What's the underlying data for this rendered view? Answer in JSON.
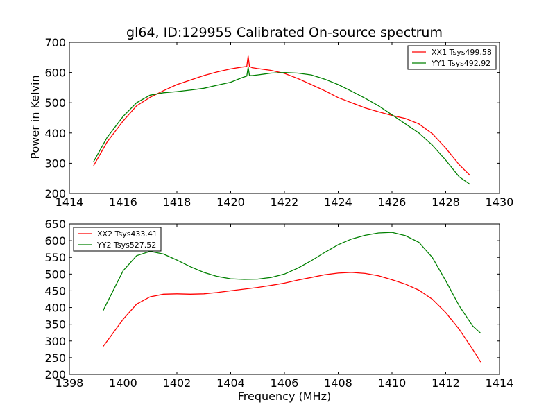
{
  "title": "gl64, ID:129955 Calibrated On-source spectrum",
  "ylabel": "Power in Kelvin",
  "xlabel": "Frequency (MHz)",
  "colors": {
    "red": "#ff0000",
    "green": "#008000"
  },
  "chart_data": [
    {
      "type": "line",
      "title": "gl64, ID:129955 Calibrated On-source spectrum",
      "ylabel": "Power in Kelvin",
      "xlabel": "",
      "xlim": [
        1414,
        1430
      ],
      "ylim": [
        200,
        700
      ],
      "xticks": [
        1414,
        1416,
        1418,
        1420,
        1422,
        1424,
        1426,
        1428,
        1430
      ],
      "yticks": [
        200,
        300,
        400,
        500,
        600,
        700
      ],
      "legend": "top-right",
      "grid": false,
      "series": [
        {
          "name": "XX1 Tsys499.58",
          "color": "#ff0000",
          "x": [
            1414.9,
            1415.4,
            1416.0,
            1416.5,
            1417.0,
            1417.5,
            1418.0,
            1418.5,
            1419.0,
            1419.5,
            1420.0,
            1420.4,
            1420.6,
            1420.65,
            1420.7,
            1420.8,
            1421.0,
            1421.5,
            1422.0,
            1422.5,
            1423.0,
            1423.5,
            1424.0,
            1424.5,
            1425.0,
            1425.5,
            1426.0,
            1426.5,
            1427.0,
            1427.5,
            1428.0,
            1428.5,
            1428.9
          ],
          "y": [
            292,
            370,
            440,
            490,
            518,
            540,
            560,
            575,
            590,
            602,
            612,
            618,
            620,
            655,
            620,
            616,
            613,
            607,
            597,
            580,
            560,
            540,
            517,
            500,
            483,
            470,
            458,
            448,
            430,
            398,
            350,
            295,
            260
          ]
        },
        {
          "name": "YY1 Tsys492.92",
          "color": "#008000",
          "x": [
            1414.9,
            1415.4,
            1416.0,
            1416.5,
            1417.0,
            1417.5,
            1418.0,
            1418.5,
            1419.0,
            1419.5,
            1420.0,
            1420.4,
            1420.6,
            1420.65,
            1420.7,
            1420.8,
            1421.0,
            1421.5,
            1422.0,
            1422.5,
            1423.0,
            1423.5,
            1424.0,
            1424.5,
            1425.0,
            1425.5,
            1426.0,
            1426.5,
            1427.0,
            1427.5,
            1428.0,
            1428.5,
            1428.9
          ],
          "y": [
            305,
            385,
            455,
            500,
            525,
            533,
            537,
            542,
            548,
            558,
            568,
            582,
            588,
            618,
            590,
            590,
            592,
            598,
            600,
            598,
            592,
            578,
            560,
            538,
            515,
            490,
            460,
            430,
            400,
            360,
            310,
            255,
            230
          ]
        }
      ]
    },
    {
      "type": "line",
      "title": "",
      "ylabel": "",
      "xlabel": "Frequency (MHz)",
      "xlim": [
        1398,
        1414
      ],
      "ylim": [
        200,
        650
      ],
      "xticks": [
        1398,
        1400,
        1402,
        1404,
        1406,
        1408,
        1410,
        1412,
        1414
      ],
      "yticks": [
        200,
        250,
        300,
        350,
        400,
        450,
        500,
        550,
        600,
        650
      ],
      "legend": "top-left",
      "grid": false,
      "series": [
        {
          "name": "XX2 Tsys433.41",
          "color": "#ff0000",
          "x": [
            1399.25,
            1399.5,
            1400.0,
            1400.5,
            1401.0,
            1401.5,
            1402.0,
            1402.5,
            1403.0,
            1403.5,
            1404.0,
            1404.5,
            1405.0,
            1405.5,
            1406.0,
            1406.5,
            1407.0,
            1407.5,
            1408.0,
            1408.5,
            1409.0,
            1409.5,
            1410.0,
            1410.5,
            1411.0,
            1411.5,
            1412.0,
            1412.5,
            1413.0,
            1413.3
          ],
          "y": [
            283,
            310,
            365,
            410,
            432,
            440,
            441,
            440,
            441,
            445,
            450,
            455,
            460,
            466,
            473,
            482,
            490,
            498,
            503,
            505,
            502,
            495,
            483,
            470,
            452,
            425,
            385,
            335,
            275,
            237
          ]
        },
        {
          "name": "YY2 Tsys527.52",
          "color": "#008000",
          "x": [
            1399.25,
            1399.5,
            1400.0,
            1400.5,
            1401.0,
            1401.5,
            1402.0,
            1402.5,
            1403.0,
            1403.5,
            1404.0,
            1404.5,
            1405.0,
            1405.5,
            1406.0,
            1406.5,
            1407.0,
            1407.5,
            1408.0,
            1408.5,
            1409.0,
            1409.5,
            1410.0,
            1410.5,
            1411.0,
            1411.5,
            1412.0,
            1412.5,
            1413.0,
            1413.3
          ],
          "y": [
            390,
            430,
            510,
            555,
            568,
            560,
            542,
            522,
            505,
            493,
            486,
            484,
            485,
            490,
            500,
            518,
            540,
            565,
            588,
            605,
            616,
            623,
            625,
            615,
            595,
            550,
            480,
            405,
            345,
            323
          ]
        }
      ]
    }
  ]
}
